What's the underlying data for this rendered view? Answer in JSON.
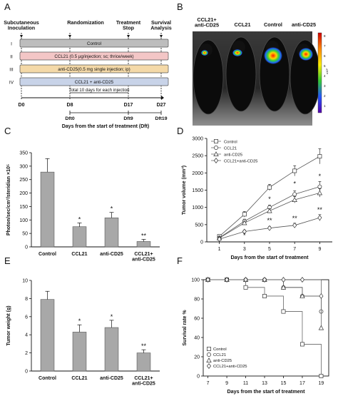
{
  "panel_labels": [
    "A",
    "B",
    "C",
    "D",
    "E",
    "F"
  ],
  "panel_a": {
    "stage_labels": [
      "Subcutaneous\nInoculation",
      "Randomization",
      "Treatment\nStop",
      "Survival\nAnalysis"
    ],
    "groups": [
      {
        "roman": "I",
        "label": "Control",
        "color": "#bdbdbd"
      },
      {
        "roman": "II",
        "label": "CCL21 (0.5 µg/injection; sc; thrice/week)",
        "color": "#f3c6c6"
      },
      {
        "roman": "III",
        "label": "anti-CD25(0.5 mg single injection; ip)",
        "color": "#f4d9a8"
      },
      {
        "roman": "IV",
        "label": "CCL21 + anti-CD25",
        "color": "#c8d3e8"
      }
    ],
    "day_labels": [
      "D0",
      "D8",
      "D17",
      "D27"
    ],
    "dft_labels": [
      "Dft0",
      "Dft9",
      "Dft19"
    ],
    "total_label": "Total 10 days for each injection",
    "axis_label": "Days from the start of treatment (Dft)"
  },
  "panel_b": {
    "group_labels": [
      "CCL21+\nanti-CD25",
      "CCL21",
      "Control",
      "anti-CD25"
    ],
    "colorbar_ticks": [
      "8",
      "7",
      "6",
      "5",
      "4",
      "3",
      "2",
      "1"
    ],
    "colorbar_unit": "x10⁶"
  },
  "chart_data": [
    {
      "panel": "C",
      "type": "bar",
      "categories": [
        "Control",
        "CCL21",
        "anti-CD25",
        "CCL21+\nanti-CD25"
      ],
      "values": [
        278,
        75,
        108,
        20
      ],
      "errors": [
        50,
        14,
        20,
        8
      ],
      "significance": [
        "",
        "*",
        "*",
        "**"
      ],
      "ylabel": "Photon/sec/cm²/steridian ×10⁵",
      "ylim": [
        0,
        350
      ],
      "yticks": [
        "0",
        "50",
        "100",
        "150",
        "200",
        "250",
        "300",
        "350"
      ]
    },
    {
      "panel": "D",
      "type": "line",
      "x": [
        1,
        3,
        5,
        7,
        9
      ],
      "xticks": [
        "1",
        "3",
        "5",
        "7",
        "9"
      ],
      "xlabel": "Days from the start of treatment",
      "ylabel": "Tumor volume (mm³)",
      "ylim": [
        0,
        3000
      ],
      "yticks": [
        "0",
        "500",
        "1000",
        "1500",
        "2000",
        "2500",
        "3000"
      ],
      "series": [
        {
          "name": "Control",
          "values": [
            160,
            800,
            1580,
            2060,
            2480
          ],
          "errors": [
            40,
            80,
            90,
            150,
            220
          ],
          "marker": "square"
        },
        {
          "name": "CCL21",
          "values": [
            120,
            600,
            1000,
            1380,
            1600
          ],
          "errors": [
            30,
            60,
            70,
            100,
            150
          ],
          "marker": "circle"
        },
        {
          "name": "anti-CD25",
          "values": [
            110,
            550,
            900,
            1220,
            1420
          ],
          "errors": [
            30,
            50,
            60,
            90,
            120
          ],
          "marker": "triangle"
        },
        {
          "name": "CCL21+anti-CD25",
          "values": [
            80,
            300,
            400,
            480,
            700
          ],
          "errors": [
            20,
            40,
            40,
            60,
            90
          ],
          "marker": "diamond"
        }
      ],
      "annotations": [
        {
          "x": 3,
          "y": 120,
          "text": "*"
        },
        {
          "x": 5,
          "y": 1180,
          "text": "*"
        },
        {
          "x": 5,
          "y": 560,
          "text": "**"
        },
        {
          "x": 7,
          "y": 1620,
          "text": "*"
        },
        {
          "x": 7,
          "y": 620,
          "text": "**"
        },
        {
          "x": 9,
          "y": 1840,
          "text": "*"
        },
        {
          "x": 9,
          "y": 870,
          "text": "**"
        }
      ],
      "legend": "top-left"
    },
    {
      "panel": "E",
      "type": "bar",
      "categories": [
        "Control",
        "CCL21",
        "anti-CD25",
        "CCL21+\nanti-CD25"
      ],
      "values": [
        7.9,
        4.3,
        4.8,
        2.0
      ],
      "errors": [
        0.9,
        0.8,
        0.8,
        0.35
      ],
      "significance": [
        "",
        "*",
        "*",
        "**"
      ],
      "ylabel": "Tumor  weight (g)",
      "ylim": [
        0,
        10
      ],
      "yticks": [
        "0",
        "2",
        "4",
        "6",
        "8",
        "10"
      ]
    },
    {
      "panel": "F",
      "type": "line",
      "x": [
        7,
        9,
        11,
        13,
        15,
        17,
        19
      ],
      "xticks": [
        "7",
        "9",
        "11",
        "13",
        "15",
        "17",
        "19"
      ],
      "xlabel": "Days from the start of treatment",
      "ylabel": "Survival  rate  %",
      "ylim": [
        0,
        100
      ],
      "yticks": [
        "0",
        "20",
        "40",
        "60",
        "80",
        "100"
      ],
      "series": [
        {
          "name": "Control",
          "marker": "square",
          "steps": [
            [
              7,
              100
            ],
            [
              9,
              100
            ],
            [
              11,
              92
            ],
            [
              13,
              83
            ],
            [
              15,
              67
            ],
            [
              17,
              33
            ],
            [
              19,
              0
            ]
          ]
        },
        {
          "name": "CCL21",
          "marker": "circle",
          "steps": [
            [
              7,
              100
            ],
            [
              9,
              100
            ],
            [
              11,
              100
            ],
            [
              13,
              100
            ],
            [
              15,
              92
            ],
            [
              17,
              83
            ],
            [
              19,
              67
            ]
          ]
        },
        {
          "name": "anti-CD25",
          "marker": "triangle",
          "steps": [
            [
              7,
              100
            ],
            [
              9,
              100
            ],
            [
              11,
              100
            ],
            [
              13,
              100
            ],
            [
              15,
              92
            ],
            [
              17,
              83
            ],
            [
              19,
              50
            ]
          ]
        },
        {
          "name": "CCL21+anti-CD25",
          "marker": "diamond",
          "steps": [
            [
              7,
              100
            ],
            [
              9,
              100
            ],
            [
              11,
              100
            ],
            [
              13,
              100
            ],
            [
              15,
              100
            ],
            [
              17,
              100
            ],
            [
              19,
              83
            ]
          ]
        }
      ],
      "legend": "bottom-left"
    }
  ]
}
